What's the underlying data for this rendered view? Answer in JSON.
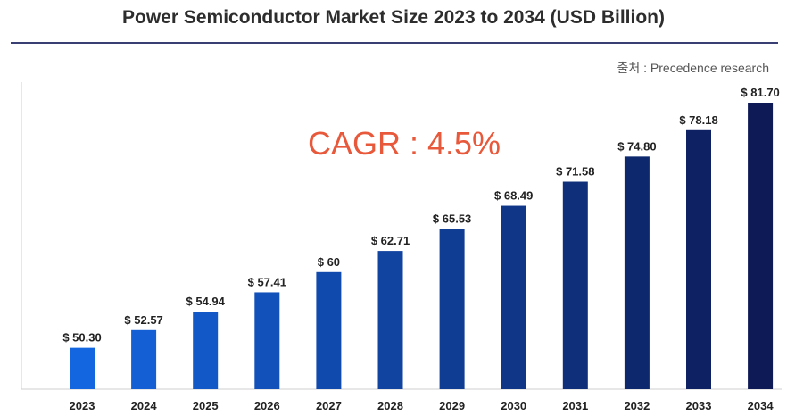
{
  "title": "Power Semiconductor Market Size 2023 to 2034 (USD Billion)",
  "source": "출처 : Precedence research",
  "annotation": "CAGR : 4.5%",
  "colors": {
    "bar_light": "#1466e0",
    "bar_dark": "#0d1a55",
    "annotation": "#e8583a"
  },
  "chart_data": {
    "type": "bar",
    "title": "Power Semiconductor Market Size 2023 to 2034 (USD Billion)",
    "xlabel": "",
    "ylabel": "",
    "categories": [
      "2023",
      "2024",
      "2025",
      "2026",
      "2027",
      "2028",
      "2029",
      "2030",
      "2031",
      "2032",
      "2033",
      "2034"
    ],
    "values": [
      50.3,
      52.57,
      54.94,
      57.41,
      60,
      62.71,
      65.53,
      68.49,
      71.58,
      74.8,
      78.18,
      81.7
    ],
    "data_labels": [
      "$ 50.30",
      "$ 52.57",
      "$ 54.94",
      "$ 57.41",
      "$ 60",
      "$ 62.71",
      "$ 65.53",
      "$ 68.49",
      "$ 71.58",
      "$ 74.80",
      "$ 78.18",
      "$ 81.70"
    ],
    "grid": false,
    "legend": "none"
  }
}
